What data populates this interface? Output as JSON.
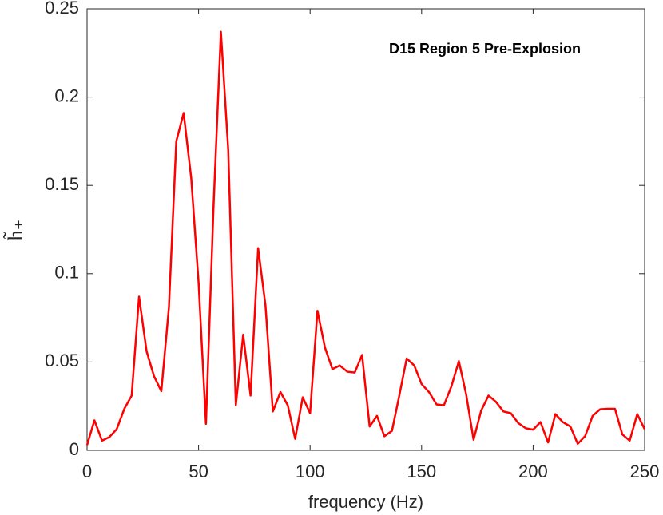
{
  "chart_data": {
    "type": "line",
    "annotation": "D15 Region 5 Pre-Explosion",
    "xlabel": "frequency (Hz)",
    "ylabel": "h̃₊",
    "xlim": [
      0,
      250
    ],
    "xticks": [
      0,
      50,
      100,
      150,
      200,
      250
    ],
    "ylim": [
      0,
      0.25
    ],
    "yticks": [
      0,
      0.05,
      0.1,
      0.15,
      0.2,
      0.25
    ],
    "grid": false,
    "x": [
      0,
      3.3,
      6.7,
      10,
      13.3,
      16.7,
      20,
      23.3,
      26.7,
      30,
      33.3,
      36.7,
      40,
      43.3,
      46.7,
      50,
      53.3,
      56.7,
      60,
      63.3,
      66.7,
      70,
      73.3,
      76.7,
      80,
      83.3,
      86.7,
      90,
      93.3,
      96.7,
      100,
      103.3,
      106.7,
      110,
      113.3,
      116.7,
      120,
      123.3,
      126.7,
      130,
      133.3,
      136.7,
      140,
      143.3,
      146.7,
      150,
      153.3,
      156.7,
      160,
      163.3,
      166.7,
      170,
      173.3,
      176.7,
      180,
      183.3,
      186.7,
      190,
      193.3,
      196.7,
      200,
      203.3,
      206.7,
      210,
      213.3,
      216.7,
      220,
      223.3,
      226.7,
      230,
      233.3,
      236.7,
      240,
      243.3,
      246.7,
      250
    ],
    "series": [
      {
        "color": "#ff0000",
        "values": [
          0.003,
          0.017,
          0.0055,
          0.0075,
          0.012,
          0.0235,
          0.031,
          0.087,
          0.056,
          0.042,
          0.0335,
          0.081,
          0.175,
          0.191,
          0.154,
          0.095,
          0.015,
          0.138,
          0.237,
          0.17,
          0.0255,
          0.0655,
          0.031,
          0.1145,
          0.082,
          0.022,
          0.033,
          0.0255,
          0.0065,
          0.03,
          0.021,
          0.079,
          0.058,
          0.046,
          0.048,
          0.0445,
          0.044,
          0.054,
          0.0135,
          0.0195,
          0.008,
          0.011,
          0.031,
          0.052,
          0.048,
          0.0375,
          0.033,
          0.026,
          0.0255,
          0.036,
          0.0505,
          0.0315,
          0.006,
          0.0225,
          0.031,
          0.0275,
          0.022,
          0.021,
          0.0155,
          0.0125,
          0.0117,
          0.016,
          0.0045,
          0.0205,
          0.016,
          0.0135,
          0.0037,
          0.008,
          0.0195,
          0.0232,
          0.0235,
          0.0235,
          0.009,
          0.0055,
          0.0205,
          0.012
        ]
      }
    ]
  }
}
